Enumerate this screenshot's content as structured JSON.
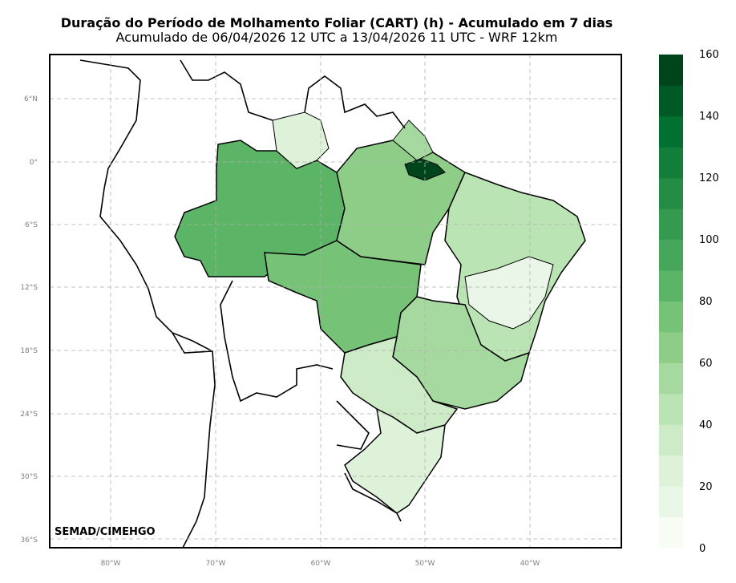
{
  "title": "Duração do Período de Molhamento Foliar (CART) (h) - Acumulado em 7 dias",
  "subtitle": "Acumulado de 06/04/2026 12 UTC a 13/04/2026 11 UTC - WRF 12km",
  "credit": "SEMAD/CIMEHGO",
  "lat_labels": [
    "6°N",
    "0°",
    "6°S",
    "12°S",
    "18°S",
    "24°S",
    "30°S",
    "36°S"
  ],
  "lon_labels": [
    "80°W",
    "70°W",
    "60°W",
    "50°W",
    "40°W"
  ],
  "colorbar": {
    "labels": [
      "160",
      "140",
      "120",
      "100",
      "80",
      "60",
      "40",
      "20",
      "0"
    ],
    "colors": [
      "#f7fcf5",
      "#eaf6e7",
      "#def2d9",
      "#cdebc6",
      "#bbe4b4",
      "#a5d99f",
      "#8ecd87",
      "#76c277",
      "#5cb466",
      "#46a65b",
      "#359a50",
      "#248c45",
      "#137d3a",
      "#027030",
      "#005a25",
      "#00441b"
    ]
  },
  "map_colors": {
    "dark": "#4ea95e",
    "mid": "#7cc47c",
    "light": "#bfe6bb",
    "pale": "#ecf7ea",
    "border": "#000000",
    "grid": "#b0b0b0"
  }
}
